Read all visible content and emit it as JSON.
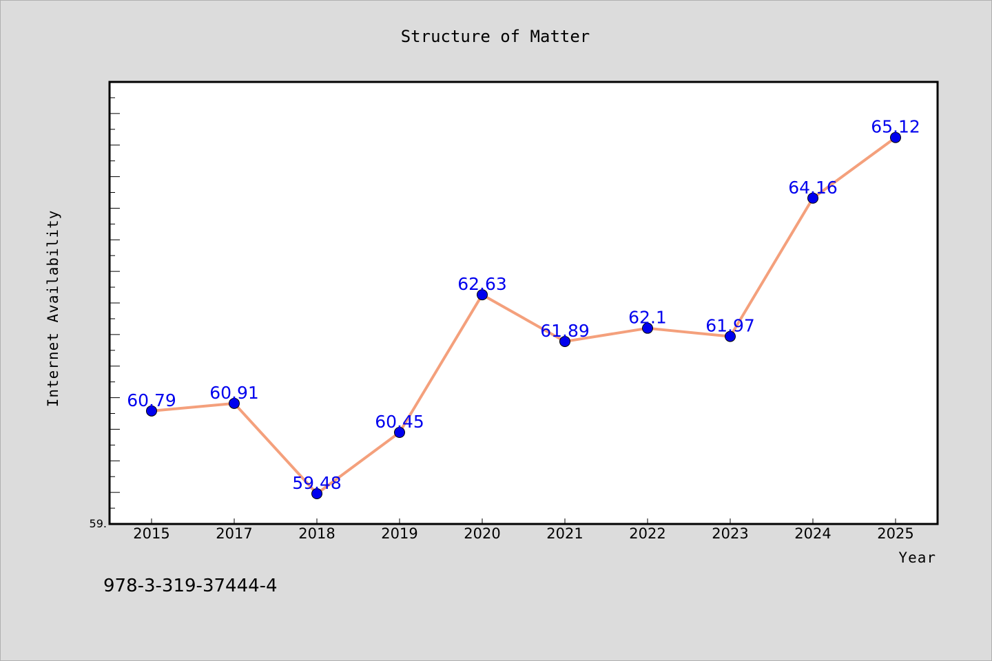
{
  "footer": {
    "isbn": "978-3-319-37444-4"
  },
  "chart_data": {
    "type": "line",
    "title": "Structure of Matter",
    "xlabel": "Year",
    "ylabel": "Internet Availability",
    "categories": [
      "2015",
      "2017",
      "2018",
      "2019",
      "2020",
      "2021",
      "2022",
      "2023",
      "2024",
      "2025"
    ],
    "values": [
      60.79,
      60.91,
      59.48,
      60.45,
      62.63,
      61.89,
      62.1,
      61.97,
      64.16,
      65.12
    ],
    "data_labels": [
      "60.79",
      "60.91",
      "59.48",
      "60.45",
      "62.63",
      "61.89",
      "62.1",
      "61.97",
      "64.16",
      "65.12"
    ],
    "ylim": [
      59.0,
      66.0
    ],
    "y_min_label": "59.",
    "line_color": "#f4a07c",
    "marker_color": "#0000ee",
    "grid": false,
    "legend": "none"
  }
}
